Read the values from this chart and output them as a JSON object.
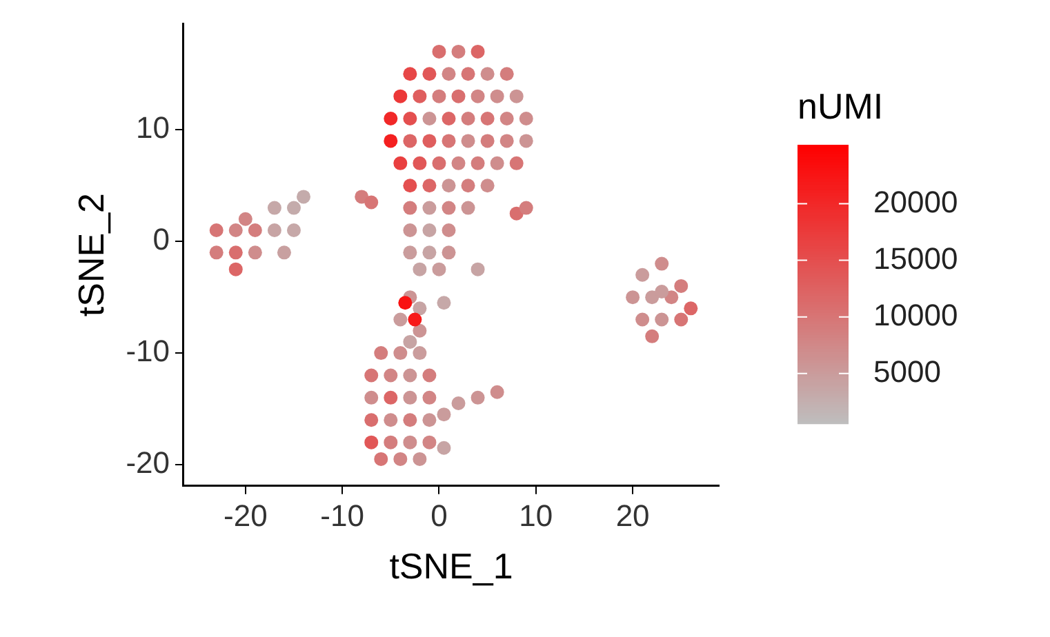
{
  "chart_data": {
    "type": "scatter",
    "xlabel": "tSNE_1",
    "ylabel": "tSNE_2",
    "clabel": "nUMI",
    "xlim": [
      -26.4,
      28.9
    ],
    "ylim": [
      -21.9,
      19.5
    ],
    "xticks": [
      -20,
      -10,
      0,
      10,
      20
    ],
    "yticks": [
      -20,
      -10,
      0,
      10
    ],
    "clim": [
      600,
      25200
    ],
    "cticks": [
      5000,
      10000,
      15000,
      20000
    ],
    "grid": false,
    "legend": false,
    "marker": "circle",
    "x": [
      0,
      2,
      4,
      -3,
      -1,
      1,
      3,
      5,
      7,
      -4,
      -2,
      0,
      2,
      4,
      6,
      8,
      -5,
      -3,
      -1,
      1,
      3,
      5,
      7,
      9,
      -5,
      -3,
      -1,
      1,
      3,
      5,
      7,
      9,
      -4,
      -2,
      0,
      2,
      4,
      6,
      8,
      -3,
      -1,
      1,
      3,
      5,
      -3,
      -1,
      1,
      3,
      -3,
      -1,
      1,
      -3,
      -1,
      1,
      -2,
      0,
      -23,
      -21,
      -19,
      -23,
      -21,
      -19,
      -21,
      -20,
      -17,
      -15,
      -17,
      -15,
      -16,
      -14,
      -8,
      -7,
      8,
      9,
      4,
      0.5,
      23,
      21,
      25,
      20,
      22,
      24,
      26,
      21,
      23,
      25,
      22,
      23,
      -3,
      -2,
      -4,
      -2,
      -3,
      -6,
      -4,
      -2,
      -7,
      -5,
      -3,
      -1,
      -7,
      -5,
      -3,
      -1,
      -7,
      -5,
      -3,
      -1,
      -7,
      -5,
      -3,
      -1,
      -6,
      -4,
      -2,
      0.5,
      2,
      4,
      6,
      0.5,
      -3.5,
      -2.5
    ],
    "values": [
      17,
      17,
      17,
      15,
      15,
      15,
      15,
      15,
      15,
      13,
      13,
      13,
      13,
      13,
      13,
      13,
      11,
      11,
      11,
      11,
      11,
      11,
      11,
      11,
      9,
      9,
      9,
      9,
      9,
      9,
      9,
      9,
      7,
      7,
      7,
      7,
      7,
      7,
      7,
      5,
      5,
      5,
      5,
      5,
      3,
      3,
      3,
      3,
      1,
      1,
      1,
      -1,
      -1,
      -1,
      -2.5,
      -2.5,
      1,
      1,
      1,
      -1,
      -1,
      -1,
      -2.5,
      2,
      3,
      3,
      1,
      1,
      -1,
      4,
      4,
      3.5,
      2.5,
      3,
      -2.5,
      -5.5,
      -2,
      -3,
      -4,
      -5,
      -5,
      -5,
      -6,
      -7,
      -7,
      -7,
      -8.5,
      -4.5,
      -5,
      -6,
      -7,
      -8,
      -9,
      -10,
      -10,
      -10,
      -12,
      -12,
      -12,
      -12,
      -14,
      -14,
      -14,
      -14,
      -16,
      -16,
      -16,
      -16,
      -18,
      -18,
      -18,
      -18,
      -19.5,
      -19.5,
      -19.5,
      -15.5,
      -14.5,
      -14,
      -13.5,
      -18.5,
      -5.5,
      -7
    ],
    "cvalues": [
      11000,
      9000,
      12000,
      16000,
      14000,
      8000,
      10000,
      7000,
      9000,
      18000,
      13000,
      9000,
      11000,
      8000,
      7000,
      6000,
      20000,
      15000,
      6000,
      12000,
      9000,
      10000,
      8000,
      7000,
      21000,
      12000,
      13000,
      10000,
      7000,
      9000,
      8000,
      6000,
      17000,
      14000,
      11000,
      8000,
      9000,
      7000,
      10000,
      15000,
      12000,
      6000,
      9000,
      7000,
      9000,
      5000,
      8000,
      6000,
      6000,
      4000,
      7000,
      5000,
      4000,
      6000,
      4000,
      5000,
      10000,
      8000,
      9000,
      9000,
      11000,
      7000,
      12000,
      8000,
      3500,
      3000,
      4000,
      3500,
      4500,
      3000,
      9000,
      10000,
      11000,
      9000,
      4000,
      3500,
      7000,
      5000,
      9000,
      6000,
      5000,
      8000,
      12000,
      7000,
      6000,
      10000,
      9000,
      5000,
      6000,
      4000,
      5000,
      6000,
      4000,
      9000,
      7000,
      5000,
      10000,
      8000,
      6000,
      9000,
      7000,
      12000,
      6000,
      8000,
      11000,
      7000,
      9000,
      6000,
      14000,
      9000,
      7000,
      8000,
      10000,
      8000,
      6000,
      5000,
      5000,
      6000,
      7000,
      4000,
      23000,
      22000
    ]
  }
}
